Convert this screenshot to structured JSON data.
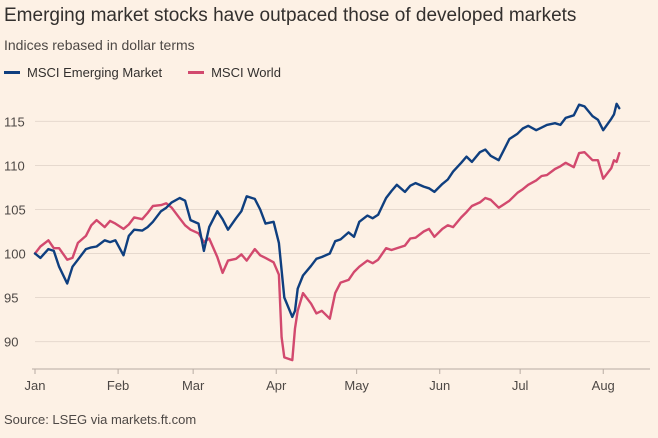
{
  "title": "Emerging market stocks have outpaced those of developed markets",
  "subtitle": "Indices rebased in dollar terms",
  "source": "Source: LSEG via markets.ft.com",
  "chart_data": {
    "type": "line",
    "title": "Emerging market stocks have outpaced those of developed markets",
    "subtitle": "Indices rebased in dollar terms",
    "xlabel": "",
    "ylabel": "",
    "ylim": [
      87,
      118
    ],
    "y_ticks": [
      90,
      95,
      100,
      105,
      110,
      115
    ],
    "y_tick_labels": [
      "90",
      "95",
      "100",
      "105",
      "110",
      "115"
    ],
    "x_ticks": [
      "2025-01-01",
      "2025-02-01",
      "2025-03-01",
      "2025-04-01",
      "2025-05-01",
      "2025-06-01",
      "2025-07-01",
      "2025-08-01"
    ],
    "x_tick_labels": [
      "Jan",
      "Feb",
      "Mar",
      "Apr",
      "May",
      "Jun",
      "Jul",
      "Aug"
    ],
    "x_range": [
      "2025-01-01",
      "2025-08-08"
    ],
    "grid": "horizontal",
    "legend": "top-left",
    "series": [
      {
        "name": "MSCI Emerging Market",
        "color": "#0f3f7f",
        "points": [
          [
            "2025-01-01",
            100.0
          ],
          [
            "2025-01-03",
            99.5
          ],
          [
            "2025-01-06",
            100.5
          ],
          [
            "2025-01-08",
            100.3
          ],
          [
            "2025-01-10",
            98.5
          ],
          [
            "2025-01-13",
            96.6
          ],
          [
            "2025-01-15",
            98.5
          ],
          [
            "2025-01-17",
            99.3
          ],
          [
            "2025-01-20",
            100.5
          ],
          [
            "2025-01-22",
            100.7
          ],
          [
            "2025-01-24",
            100.8
          ],
          [
            "2025-01-27",
            101.5
          ],
          [
            "2025-01-29",
            101.3
          ],
          [
            "2025-01-31",
            101.5
          ],
          [
            "2025-02-03",
            99.8
          ],
          [
            "2025-02-05",
            102.0
          ],
          [
            "2025-02-07",
            102.7
          ],
          [
            "2025-02-10",
            102.6
          ],
          [
            "2025-02-12",
            103.0
          ],
          [
            "2025-02-14",
            103.6
          ],
          [
            "2025-02-17",
            104.8
          ],
          [
            "2025-02-19",
            105.2
          ],
          [
            "2025-02-21",
            105.8
          ],
          [
            "2025-02-24",
            106.3
          ],
          [
            "2025-02-26",
            106.0
          ],
          [
            "2025-02-28",
            103.8
          ],
          [
            "2025-03-03",
            103.4
          ],
          [
            "2025-03-05",
            100.3
          ],
          [
            "2025-03-07",
            103.0
          ],
          [
            "2025-03-10",
            104.8
          ],
          [
            "2025-03-12",
            103.9
          ],
          [
            "2025-03-14",
            102.7
          ],
          [
            "2025-03-17",
            104.0
          ],
          [
            "2025-03-19",
            104.8
          ],
          [
            "2025-03-21",
            106.5
          ],
          [
            "2025-03-24",
            106.2
          ],
          [
            "2025-03-26",
            105.0
          ],
          [
            "2025-03-28",
            103.4
          ],
          [
            "2025-03-31",
            103.6
          ],
          [
            "2025-04-02",
            101.2
          ],
          [
            "2025-04-04",
            95.0
          ],
          [
            "2025-04-07",
            92.8
          ],
          [
            "2025-04-08",
            93.5
          ],
          [
            "2025-04-09",
            96.0
          ],
          [
            "2025-04-11",
            97.5
          ],
          [
            "2025-04-14",
            98.6
          ],
          [
            "2025-04-16",
            99.4
          ],
          [
            "2025-04-18",
            99.6
          ],
          [
            "2025-04-21",
            100.0
          ],
          [
            "2025-04-23",
            101.4
          ],
          [
            "2025-04-25",
            101.6
          ],
          [
            "2025-04-28",
            102.4
          ],
          [
            "2025-04-30",
            101.9
          ],
          [
            "2025-05-02",
            103.6
          ],
          [
            "2025-05-05",
            104.3
          ],
          [
            "2025-05-07",
            104.0
          ],
          [
            "2025-05-09",
            104.4
          ],
          [
            "2025-05-12",
            106.3
          ],
          [
            "2025-05-14",
            107.1
          ],
          [
            "2025-05-16",
            107.8
          ],
          [
            "2025-05-19",
            107.0
          ],
          [
            "2025-05-21",
            107.7
          ],
          [
            "2025-05-23",
            108.0
          ],
          [
            "2025-05-26",
            107.6
          ],
          [
            "2025-05-28",
            107.4
          ],
          [
            "2025-05-30",
            107.0
          ],
          [
            "2025-06-02",
            107.9
          ],
          [
            "2025-06-04",
            108.4
          ],
          [
            "2025-06-06",
            109.3
          ],
          [
            "2025-06-09",
            110.3
          ],
          [
            "2025-06-11",
            111.0
          ],
          [
            "2025-06-13",
            110.4
          ],
          [
            "2025-06-16",
            111.5
          ],
          [
            "2025-06-18",
            111.8
          ],
          [
            "2025-06-20",
            111.1
          ],
          [
            "2025-06-23",
            110.6
          ],
          [
            "2025-06-25",
            111.8
          ],
          [
            "2025-06-27",
            113.0
          ],
          [
            "2025-06-30",
            113.6
          ],
          [
            "2025-07-02",
            114.2
          ],
          [
            "2025-07-04",
            114.5
          ],
          [
            "2025-07-07",
            114.0
          ],
          [
            "2025-07-09",
            114.3
          ],
          [
            "2025-07-11",
            114.6
          ],
          [
            "2025-07-14",
            114.8
          ],
          [
            "2025-07-16",
            114.6
          ],
          [
            "2025-07-18",
            115.4
          ],
          [
            "2025-07-21",
            115.7
          ],
          [
            "2025-07-23",
            116.9
          ],
          [
            "2025-07-25",
            116.7
          ],
          [
            "2025-07-28",
            115.6
          ],
          [
            "2025-07-30",
            115.2
          ],
          [
            "2025-08-01",
            114.0
          ],
          [
            "2025-08-04",
            115.3
          ],
          [
            "2025-08-05",
            115.8
          ],
          [
            "2025-08-06",
            117.0
          ],
          [
            "2025-08-07",
            116.5
          ]
        ]
      },
      {
        "name": "MSCI World",
        "color": "#d2496e",
        "points": [
          [
            "2025-01-01",
            100.0
          ],
          [
            "2025-01-03",
            100.8
          ],
          [
            "2025-01-06",
            101.5
          ],
          [
            "2025-01-08",
            100.6
          ],
          [
            "2025-01-10",
            100.6
          ],
          [
            "2025-01-13",
            99.3
          ],
          [
            "2025-01-15",
            99.5
          ],
          [
            "2025-01-17",
            101.2
          ],
          [
            "2025-01-20",
            102.0
          ],
          [
            "2025-01-22",
            103.2
          ],
          [
            "2025-01-24",
            103.8
          ],
          [
            "2025-01-27",
            103.0
          ],
          [
            "2025-01-29",
            103.7
          ],
          [
            "2025-01-31",
            103.4
          ],
          [
            "2025-02-03",
            102.8
          ],
          [
            "2025-02-05",
            103.3
          ],
          [
            "2025-02-07",
            104.1
          ],
          [
            "2025-02-10",
            103.9
          ],
          [
            "2025-02-12",
            104.6
          ],
          [
            "2025-02-14",
            105.4
          ],
          [
            "2025-02-17",
            105.5
          ],
          [
            "2025-02-19",
            105.7
          ],
          [
            "2025-02-21",
            105.2
          ],
          [
            "2025-02-24",
            104.0
          ],
          [
            "2025-02-26",
            103.2
          ],
          [
            "2025-02-28",
            102.7
          ],
          [
            "2025-03-03",
            102.3
          ],
          [
            "2025-03-05",
            101.3
          ],
          [
            "2025-03-07",
            101.7
          ],
          [
            "2025-03-10",
            99.6
          ],
          [
            "2025-03-12",
            97.8
          ],
          [
            "2025-03-14",
            99.2
          ],
          [
            "2025-03-17",
            99.4
          ],
          [
            "2025-03-19",
            99.9
          ],
          [
            "2025-03-21",
            99.2
          ],
          [
            "2025-03-24",
            100.5
          ],
          [
            "2025-03-26",
            99.8
          ],
          [
            "2025-03-28",
            99.5
          ],
          [
            "2025-03-31",
            99.0
          ],
          [
            "2025-04-02",
            97.6
          ],
          [
            "2025-04-03",
            90.5
          ],
          [
            "2025-04-04",
            88.2
          ],
          [
            "2025-04-07",
            87.9
          ],
          [
            "2025-04-08",
            91.5
          ],
          [
            "2025-04-09",
            93.5
          ],
          [
            "2025-04-11",
            95.5
          ],
          [
            "2025-04-14",
            94.3
          ],
          [
            "2025-04-16",
            93.2
          ],
          [
            "2025-04-18",
            93.5
          ],
          [
            "2025-04-21",
            92.6
          ],
          [
            "2025-04-23",
            95.5
          ],
          [
            "2025-04-25",
            96.7
          ],
          [
            "2025-04-28",
            97.0
          ],
          [
            "2025-04-30",
            97.9
          ],
          [
            "2025-05-02",
            98.5
          ],
          [
            "2025-05-05",
            99.2
          ],
          [
            "2025-05-07",
            98.9
          ],
          [
            "2025-05-09",
            99.3
          ],
          [
            "2025-05-12",
            100.6
          ],
          [
            "2025-05-14",
            100.4
          ],
          [
            "2025-05-16",
            100.6
          ],
          [
            "2025-05-19",
            100.9
          ],
          [
            "2025-05-21",
            101.7
          ],
          [
            "2025-05-23",
            101.8
          ],
          [
            "2025-05-26",
            102.5
          ],
          [
            "2025-05-28",
            102.8
          ],
          [
            "2025-05-30",
            101.9
          ],
          [
            "2025-06-02",
            102.8
          ],
          [
            "2025-06-04",
            103.2
          ],
          [
            "2025-06-06",
            103.0
          ],
          [
            "2025-06-09",
            104.1
          ],
          [
            "2025-06-11",
            104.7
          ],
          [
            "2025-06-13",
            105.4
          ],
          [
            "2025-06-16",
            105.8
          ],
          [
            "2025-06-18",
            106.3
          ],
          [
            "2025-06-20",
            106.1
          ],
          [
            "2025-06-23",
            105.2
          ],
          [
            "2025-06-25",
            105.6
          ],
          [
            "2025-06-27",
            106.0
          ],
          [
            "2025-06-30",
            106.9
          ],
          [
            "2025-07-02",
            107.3
          ],
          [
            "2025-07-04",
            107.8
          ],
          [
            "2025-07-07",
            108.3
          ],
          [
            "2025-07-09",
            108.8
          ],
          [
            "2025-07-11",
            108.9
          ],
          [
            "2025-07-14",
            109.6
          ],
          [
            "2025-07-16",
            109.9
          ],
          [
            "2025-07-18",
            110.3
          ],
          [
            "2025-07-21",
            109.8
          ],
          [
            "2025-07-23",
            111.4
          ],
          [
            "2025-07-25",
            111.5
          ],
          [
            "2025-07-28",
            110.6
          ],
          [
            "2025-07-30",
            110.6
          ],
          [
            "2025-08-01",
            108.5
          ],
          [
            "2025-08-04",
            109.7
          ],
          [
            "2025-08-05",
            110.6
          ],
          [
            "2025-08-06",
            110.4
          ],
          [
            "2025-08-07",
            111.4
          ]
        ]
      }
    ]
  }
}
